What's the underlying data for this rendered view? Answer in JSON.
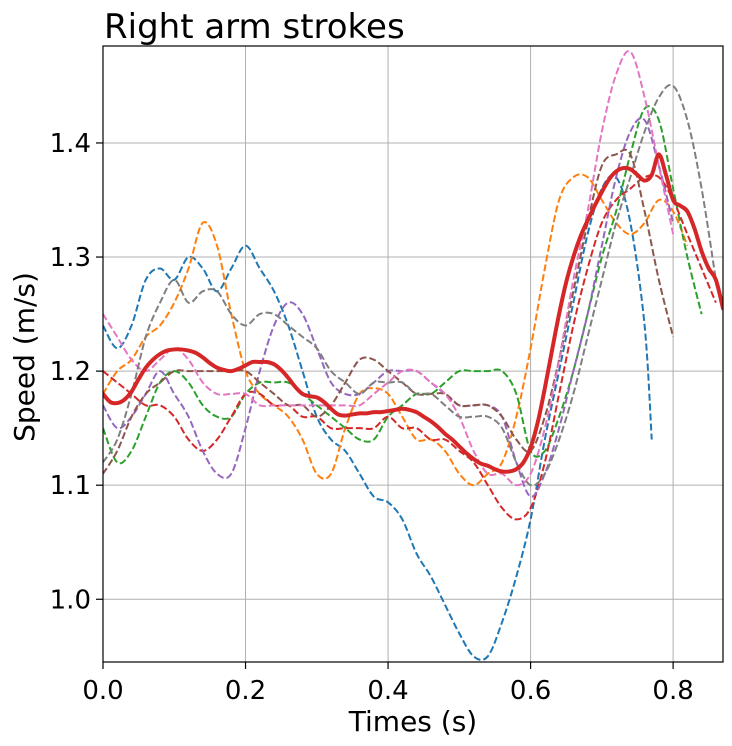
{
  "chart_data": {
    "type": "line",
    "title": "Right arm strokes",
    "xlabel": "Times (s)",
    "ylabel": "Speed (m/s)",
    "xlim": [
      0.0,
      0.87
    ],
    "ylim": [
      0.945,
      1.485
    ],
    "xticks": [
      "0.0",
      "0.2",
      "0.4",
      "0.6",
      "0.8"
    ],
    "xtick_values": [
      0.0,
      0.2,
      0.4,
      0.6,
      0.8
    ],
    "yticks": [
      "1.0",
      "1.1",
      "1.2",
      "1.3",
      "1.4"
    ],
    "ytick_values": [
      1.0,
      1.1,
      1.2,
      1.3,
      1.4
    ],
    "grid": true,
    "series": [
      {
        "color": "#1f77b4",
        "style": "dashed",
        "x": [
          0.0,
          0.02,
          0.04,
          0.06,
          0.08,
          0.1,
          0.12,
          0.14,
          0.16,
          0.18,
          0.2,
          0.22,
          0.24,
          0.26,
          0.28,
          0.3,
          0.32,
          0.34,
          0.36,
          0.38,
          0.4,
          0.42,
          0.44,
          0.46,
          0.48,
          0.5,
          0.52,
          0.54,
          0.56,
          0.58,
          0.6,
          0.62,
          0.64,
          0.66,
          0.68,
          0.7,
          0.72,
          0.74,
          0.76,
          0.77
        ],
        "y": [
          1.24,
          1.22,
          1.24,
          1.28,
          1.29,
          1.28,
          1.3,
          1.29,
          1.27,
          1.29,
          1.31,
          1.29,
          1.27,
          1.24,
          1.2,
          1.16,
          1.14,
          1.13,
          1.11,
          1.09,
          1.085,
          1.07,
          1.04,
          1.02,
          0.995,
          0.97,
          0.95,
          0.95,
          0.98,
          1.02,
          1.07,
          1.14,
          1.2,
          1.26,
          1.32,
          1.36,
          1.37,
          1.33,
          1.24,
          1.14
        ]
      },
      {
        "color": "#ff7f0e",
        "style": "dashed",
        "x": [
          0.0,
          0.02,
          0.04,
          0.06,
          0.08,
          0.1,
          0.12,
          0.14,
          0.16,
          0.18,
          0.2,
          0.22,
          0.24,
          0.26,
          0.28,
          0.3,
          0.32,
          0.34,
          0.36,
          0.38,
          0.4,
          0.42,
          0.44,
          0.46,
          0.48,
          0.5,
          0.52,
          0.54,
          0.56,
          0.58,
          0.6,
          0.62,
          0.64,
          0.66,
          0.68,
          0.7,
          0.72,
          0.74,
          0.76,
          0.78,
          0.8,
          0.82
        ],
        "y": [
          1.18,
          1.2,
          1.21,
          1.23,
          1.24,
          1.26,
          1.29,
          1.33,
          1.31,
          1.25,
          1.2,
          1.18,
          1.17,
          1.16,
          1.14,
          1.11,
          1.11,
          1.15,
          1.18,
          1.185,
          1.18,
          1.16,
          1.14,
          1.14,
          1.13,
          1.11,
          1.1,
          1.11,
          1.12,
          1.16,
          1.22,
          1.29,
          1.35,
          1.37,
          1.37,
          1.35,
          1.33,
          1.32,
          1.33,
          1.35,
          1.34,
          1.31
        ]
      },
      {
        "color": "#2ca02c",
        "style": "dashed",
        "x": [
          0.0,
          0.02,
          0.04,
          0.06,
          0.08,
          0.1,
          0.12,
          0.14,
          0.16,
          0.18,
          0.2,
          0.22,
          0.24,
          0.26,
          0.28,
          0.3,
          0.32,
          0.34,
          0.36,
          0.38,
          0.4,
          0.42,
          0.44,
          0.46,
          0.48,
          0.5,
          0.52,
          0.54,
          0.56,
          0.58,
          0.6,
          0.62,
          0.64,
          0.66,
          0.68,
          0.7,
          0.72,
          0.74,
          0.76,
          0.78,
          0.8,
          0.82,
          0.84
        ],
        "y": [
          1.15,
          1.12,
          1.13,
          1.16,
          1.19,
          1.2,
          1.19,
          1.17,
          1.16,
          1.16,
          1.18,
          1.19,
          1.19,
          1.19,
          1.18,
          1.17,
          1.16,
          1.15,
          1.14,
          1.14,
          1.16,
          1.17,
          1.18,
          1.18,
          1.19,
          1.2,
          1.2,
          1.2,
          1.2,
          1.18,
          1.13,
          1.13,
          1.16,
          1.2,
          1.25,
          1.3,
          1.34,
          1.39,
          1.43,
          1.42,
          1.36,
          1.3,
          1.25
        ]
      },
      {
        "color": "#d62728",
        "style": "dashed",
        "x": [
          0.0,
          0.02,
          0.04,
          0.06,
          0.08,
          0.1,
          0.12,
          0.14,
          0.16,
          0.18,
          0.2,
          0.22,
          0.24,
          0.26,
          0.28,
          0.3,
          0.32,
          0.34,
          0.36,
          0.38,
          0.4,
          0.42,
          0.44,
          0.46,
          0.48,
          0.5,
          0.52,
          0.54,
          0.56,
          0.58,
          0.6,
          0.62,
          0.64,
          0.66,
          0.68,
          0.7,
          0.72,
          0.74,
          0.76,
          0.78,
          0.8,
          0.82,
          0.84,
          0.86
        ],
        "y": [
          1.2,
          1.19,
          1.18,
          1.17,
          1.17,
          1.16,
          1.14,
          1.13,
          1.14,
          1.16,
          1.18,
          1.18,
          1.17,
          1.17,
          1.16,
          1.16,
          1.15,
          1.15,
          1.15,
          1.15,
          1.16,
          1.15,
          1.15,
          1.14,
          1.14,
          1.13,
          1.12,
          1.1,
          1.08,
          1.07,
          1.08,
          1.12,
          1.18,
          1.24,
          1.29,
          1.33,
          1.35,
          1.36,
          1.37,
          1.37,
          1.35,
          1.32,
          1.29,
          1.26
        ]
      },
      {
        "color": "#9467bd",
        "style": "dashed",
        "x": [
          0.0,
          0.02,
          0.04,
          0.06,
          0.08,
          0.1,
          0.12,
          0.14,
          0.16,
          0.18,
          0.2,
          0.22,
          0.24,
          0.26,
          0.28,
          0.3,
          0.32,
          0.34,
          0.36,
          0.38,
          0.4,
          0.42,
          0.44,
          0.46,
          0.48,
          0.5,
          0.52,
          0.54,
          0.56,
          0.58,
          0.6,
          0.62,
          0.64,
          0.66,
          0.68,
          0.7,
          0.72,
          0.74,
          0.76,
          0.78,
          0.8
        ],
        "y": [
          1.17,
          1.15,
          1.16,
          1.18,
          1.2,
          1.18,
          1.16,
          1.13,
          1.11,
          1.11,
          1.15,
          1.2,
          1.24,
          1.26,
          1.25,
          1.22,
          1.19,
          1.18,
          1.18,
          1.19,
          1.2,
          1.2,
          1.2,
          1.19,
          1.18,
          1.17,
          1.17,
          1.17,
          1.16,
          1.12,
          1.09,
          1.11,
          1.15,
          1.2,
          1.25,
          1.31,
          1.37,
          1.41,
          1.42,
          1.38,
          1.33
        ]
      },
      {
        "color": "#8c564b",
        "style": "dashed",
        "x": [
          0.0,
          0.02,
          0.04,
          0.06,
          0.08,
          0.1,
          0.12,
          0.14,
          0.16,
          0.18,
          0.2,
          0.22,
          0.24,
          0.26,
          0.28,
          0.3,
          0.32,
          0.34,
          0.36,
          0.38,
          0.4,
          0.42,
          0.44,
          0.46,
          0.48,
          0.5,
          0.52,
          0.54,
          0.56,
          0.58,
          0.6,
          0.62,
          0.64,
          0.66,
          0.68,
          0.7,
          0.72,
          0.74,
          0.76,
          0.78,
          0.8
        ],
        "y": [
          1.11,
          1.13,
          1.16,
          1.18,
          1.19,
          1.2,
          1.2,
          1.2,
          1.2,
          1.2,
          1.2,
          1.19,
          1.18,
          1.17,
          1.17,
          1.16,
          1.17,
          1.19,
          1.21,
          1.21,
          1.2,
          1.19,
          1.18,
          1.18,
          1.18,
          1.17,
          1.17,
          1.17,
          1.16,
          1.14,
          1.13,
          1.16,
          1.21,
          1.27,
          1.33,
          1.38,
          1.39,
          1.39,
          1.34,
          1.28,
          1.23
        ]
      },
      {
        "color": "#e377c2",
        "style": "dashed",
        "x": [
          0.0,
          0.02,
          0.04,
          0.06,
          0.08,
          0.1,
          0.12,
          0.14,
          0.16,
          0.18,
          0.2,
          0.22,
          0.24,
          0.26,
          0.28,
          0.3,
          0.32,
          0.34,
          0.36,
          0.38,
          0.4,
          0.42,
          0.44,
          0.46,
          0.48,
          0.5,
          0.52,
          0.54,
          0.56,
          0.58,
          0.6,
          0.62,
          0.64,
          0.66,
          0.68,
          0.7,
          0.72,
          0.74,
          0.76,
          0.78,
          0.8
        ],
        "y": [
          1.25,
          1.23,
          1.21,
          1.2,
          1.21,
          1.22,
          1.21,
          1.19,
          1.18,
          1.18,
          1.18,
          1.17,
          1.17,
          1.17,
          1.17,
          1.17,
          1.17,
          1.17,
          1.17,
          1.18,
          1.19,
          1.2,
          1.2,
          1.19,
          1.18,
          1.16,
          1.13,
          1.11,
          1.11,
          1.1,
          1.11,
          1.15,
          1.21,
          1.28,
          1.34,
          1.41,
          1.46,
          1.48,
          1.44,
          1.38,
          1.32
        ]
      },
      {
        "color": "#7f7f7f",
        "style": "dashed",
        "x": [
          0.0,
          0.02,
          0.04,
          0.06,
          0.08,
          0.1,
          0.12,
          0.14,
          0.16,
          0.18,
          0.2,
          0.22,
          0.24,
          0.26,
          0.28,
          0.3,
          0.32,
          0.34,
          0.36,
          0.38,
          0.4,
          0.42,
          0.44,
          0.46,
          0.48,
          0.5,
          0.52,
          0.54,
          0.56,
          0.58,
          0.6,
          0.62,
          0.64,
          0.66,
          0.68,
          0.7,
          0.72,
          0.74,
          0.76,
          0.78,
          0.8,
          0.82,
          0.84,
          0.86
        ],
        "y": [
          1.12,
          1.14,
          1.18,
          1.23,
          1.26,
          1.28,
          1.26,
          1.27,
          1.27,
          1.25,
          1.24,
          1.25,
          1.25,
          1.24,
          1.23,
          1.22,
          1.2,
          1.19,
          1.18,
          1.19,
          1.19,
          1.19,
          1.18,
          1.18,
          1.17,
          1.16,
          1.16,
          1.16,
          1.15,
          1.12,
          1.1,
          1.11,
          1.14,
          1.18,
          1.23,
          1.28,
          1.33,
          1.37,
          1.41,
          1.44,
          1.45,
          1.42,
          1.36,
          1.28
        ]
      },
      {
        "color": "#d62728",
        "style": "solid",
        "width": "thick",
        "x": [
          0.0,
          0.01,
          0.02,
          0.03,
          0.04,
          0.05,
          0.06,
          0.07,
          0.08,
          0.09,
          0.1,
          0.11,
          0.12,
          0.13,
          0.14,
          0.15,
          0.16,
          0.17,
          0.18,
          0.19,
          0.2,
          0.21,
          0.22,
          0.23,
          0.24,
          0.25,
          0.26,
          0.27,
          0.28,
          0.29,
          0.3,
          0.31,
          0.32,
          0.33,
          0.34,
          0.35,
          0.36,
          0.37,
          0.38,
          0.39,
          0.4,
          0.41,
          0.42,
          0.43,
          0.44,
          0.45,
          0.46,
          0.47,
          0.48,
          0.49,
          0.5,
          0.51,
          0.52,
          0.53,
          0.54,
          0.55,
          0.56,
          0.57,
          0.58,
          0.59,
          0.6,
          0.61,
          0.62,
          0.63,
          0.64,
          0.65,
          0.66,
          0.67,
          0.68,
          0.69,
          0.7,
          0.71,
          0.72,
          0.73,
          0.74,
          0.75,
          0.76,
          0.77,
          0.78,
          0.79,
          0.8,
          0.81,
          0.82,
          0.83,
          0.84,
          0.85,
          0.86,
          0.87
        ],
        "y": [
          1.18,
          1.173,
          1.172,
          1.175,
          1.182,
          1.193,
          1.203,
          1.21,
          1.215,
          1.218,
          1.219,
          1.219,
          1.218,
          1.216,
          1.212,
          1.207,
          1.203,
          1.201,
          1.2,
          1.202,
          1.205,
          1.208,
          1.208,
          1.208,
          1.206,
          1.201,
          1.194,
          1.186,
          1.18,
          1.178,
          1.177,
          1.173,
          1.167,
          1.162,
          1.161,
          1.162,
          1.163,
          1.163,
          1.164,
          1.164,
          1.165,
          1.166,
          1.167,
          1.166,
          1.164,
          1.16,
          1.156,
          1.151,
          1.145,
          1.14,
          1.134,
          1.128,
          1.123,
          1.119,
          1.117,
          1.114,
          1.112,
          1.112,
          1.114,
          1.12,
          1.133,
          1.155,
          1.185,
          1.218,
          1.25,
          1.278,
          1.3,
          1.318,
          1.332,
          1.345,
          1.357,
          1.368,
          1.375,
          1.378,
          1.377,
          1.372,
          1.367,
          1.372,
          1.39,
          1.372,
          1.35,
          1.345,
          1.34,
          1.325,
          1.305,
          1.29,
          1.28,
          1.255
        ]
      }
    ]
  }
}
